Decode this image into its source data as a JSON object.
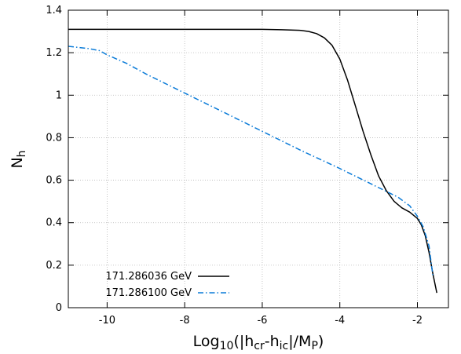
{
  "chart_data": {
    "type": "line",
    "title": "",
    "xlabel": {
      "main": "Log",
      "sub1": "10",
      "mid1": "(|h",
      "sub2": "cr",
      "mid2": "-h",
      "sub3": "ic",
      "mid3": "|/M",
      "sub4": "P",
      "end": ")"
    },
    "ylabel": {
      "main": "N",
      "sub": "h"
    },
    "xlim": [
      -11,
      -1.2
    ],
    "ylim": [
      0,
      1.4
    ],
    "xticks": [
      -10,
      -8,
      -6,
      -4,
      -2
    ],
    "xtick_labels": [
      "-10",
      "-8",
      "-6",
      "-4",
      "-2"
    ],
    "yticks": [
      0,
      0.2,
      0.4,
      0.6,
      0.8,
      1,
      1.2,
      1.4
    ],
    "ytick_labels": [
      "0",
      "0.2",
      "0.4",
      "0.6",
      "0.8",
      "1",
      "1.2",
      "1.4"
    ],
    "grid": true,
    "legend": "bottom-left",
    "series": [
      {
        "name": "171.286036 GeV",
        "color": "#000000",
        "dash": "solid",
        "x": [
          -11,
          -10,
          -9,
          -8,
          -7,
          -6,
          -5.5,
          -5,
          -4.8,
          -4.6,
          -4.4,
          -4.2,
          -4.0,
          -3.8,
          -3.6,
          -3.4,
          -3.2,
          -3.0,
          -2.8,
          -2.6,
          -2.4,
          -2.2,
          -2.0,
          -1.9,
          -1.8,
          -1.7,
          -1.6,
          -1.5
        ],
        "y": [
          1.31,
          1.31,
          1.31,
          1.31,
          1.31,
          1.31,
          1.308,
          1.305,
          1.3,
          1.29,
          1.27,
          1.235,
          1.17,
          1.07,
          0.95,
          0.83,
          0.72,
          0.62,
          0.55,
          0.5,
          0.47,
          0.45,
          0.42,
          0.39,
          0.34,
          0.26,
          0.16,
          0.07
        ]
      },
      {
        "name": "171.286100 GeV",
        "color": "#0a7bd8",
        "dash": "dashdot",
        "x": [
          -11,
          -10.5,
          -10.2,
          -10,
          -9.5,
          -9,
          -8,
          -7,
          -6,
          -5,
          -4,
          -3,
          -2.5,
          -2.2,
          -2.0,
          -1.85,
          -1.7,
          -1.6
        ],
        "y": [
          1.23,
          1.22,
          1.21,
          1.19,
          1.15,
          1.1,
          1.01,
          0.92,
          0.83,
          0.74,
          0.655,
          0.565,
          0.52,
          0.48,
          0.43,
          0.38,
          0.29,
          0.15
        ]
      }
    ]
  }
}
